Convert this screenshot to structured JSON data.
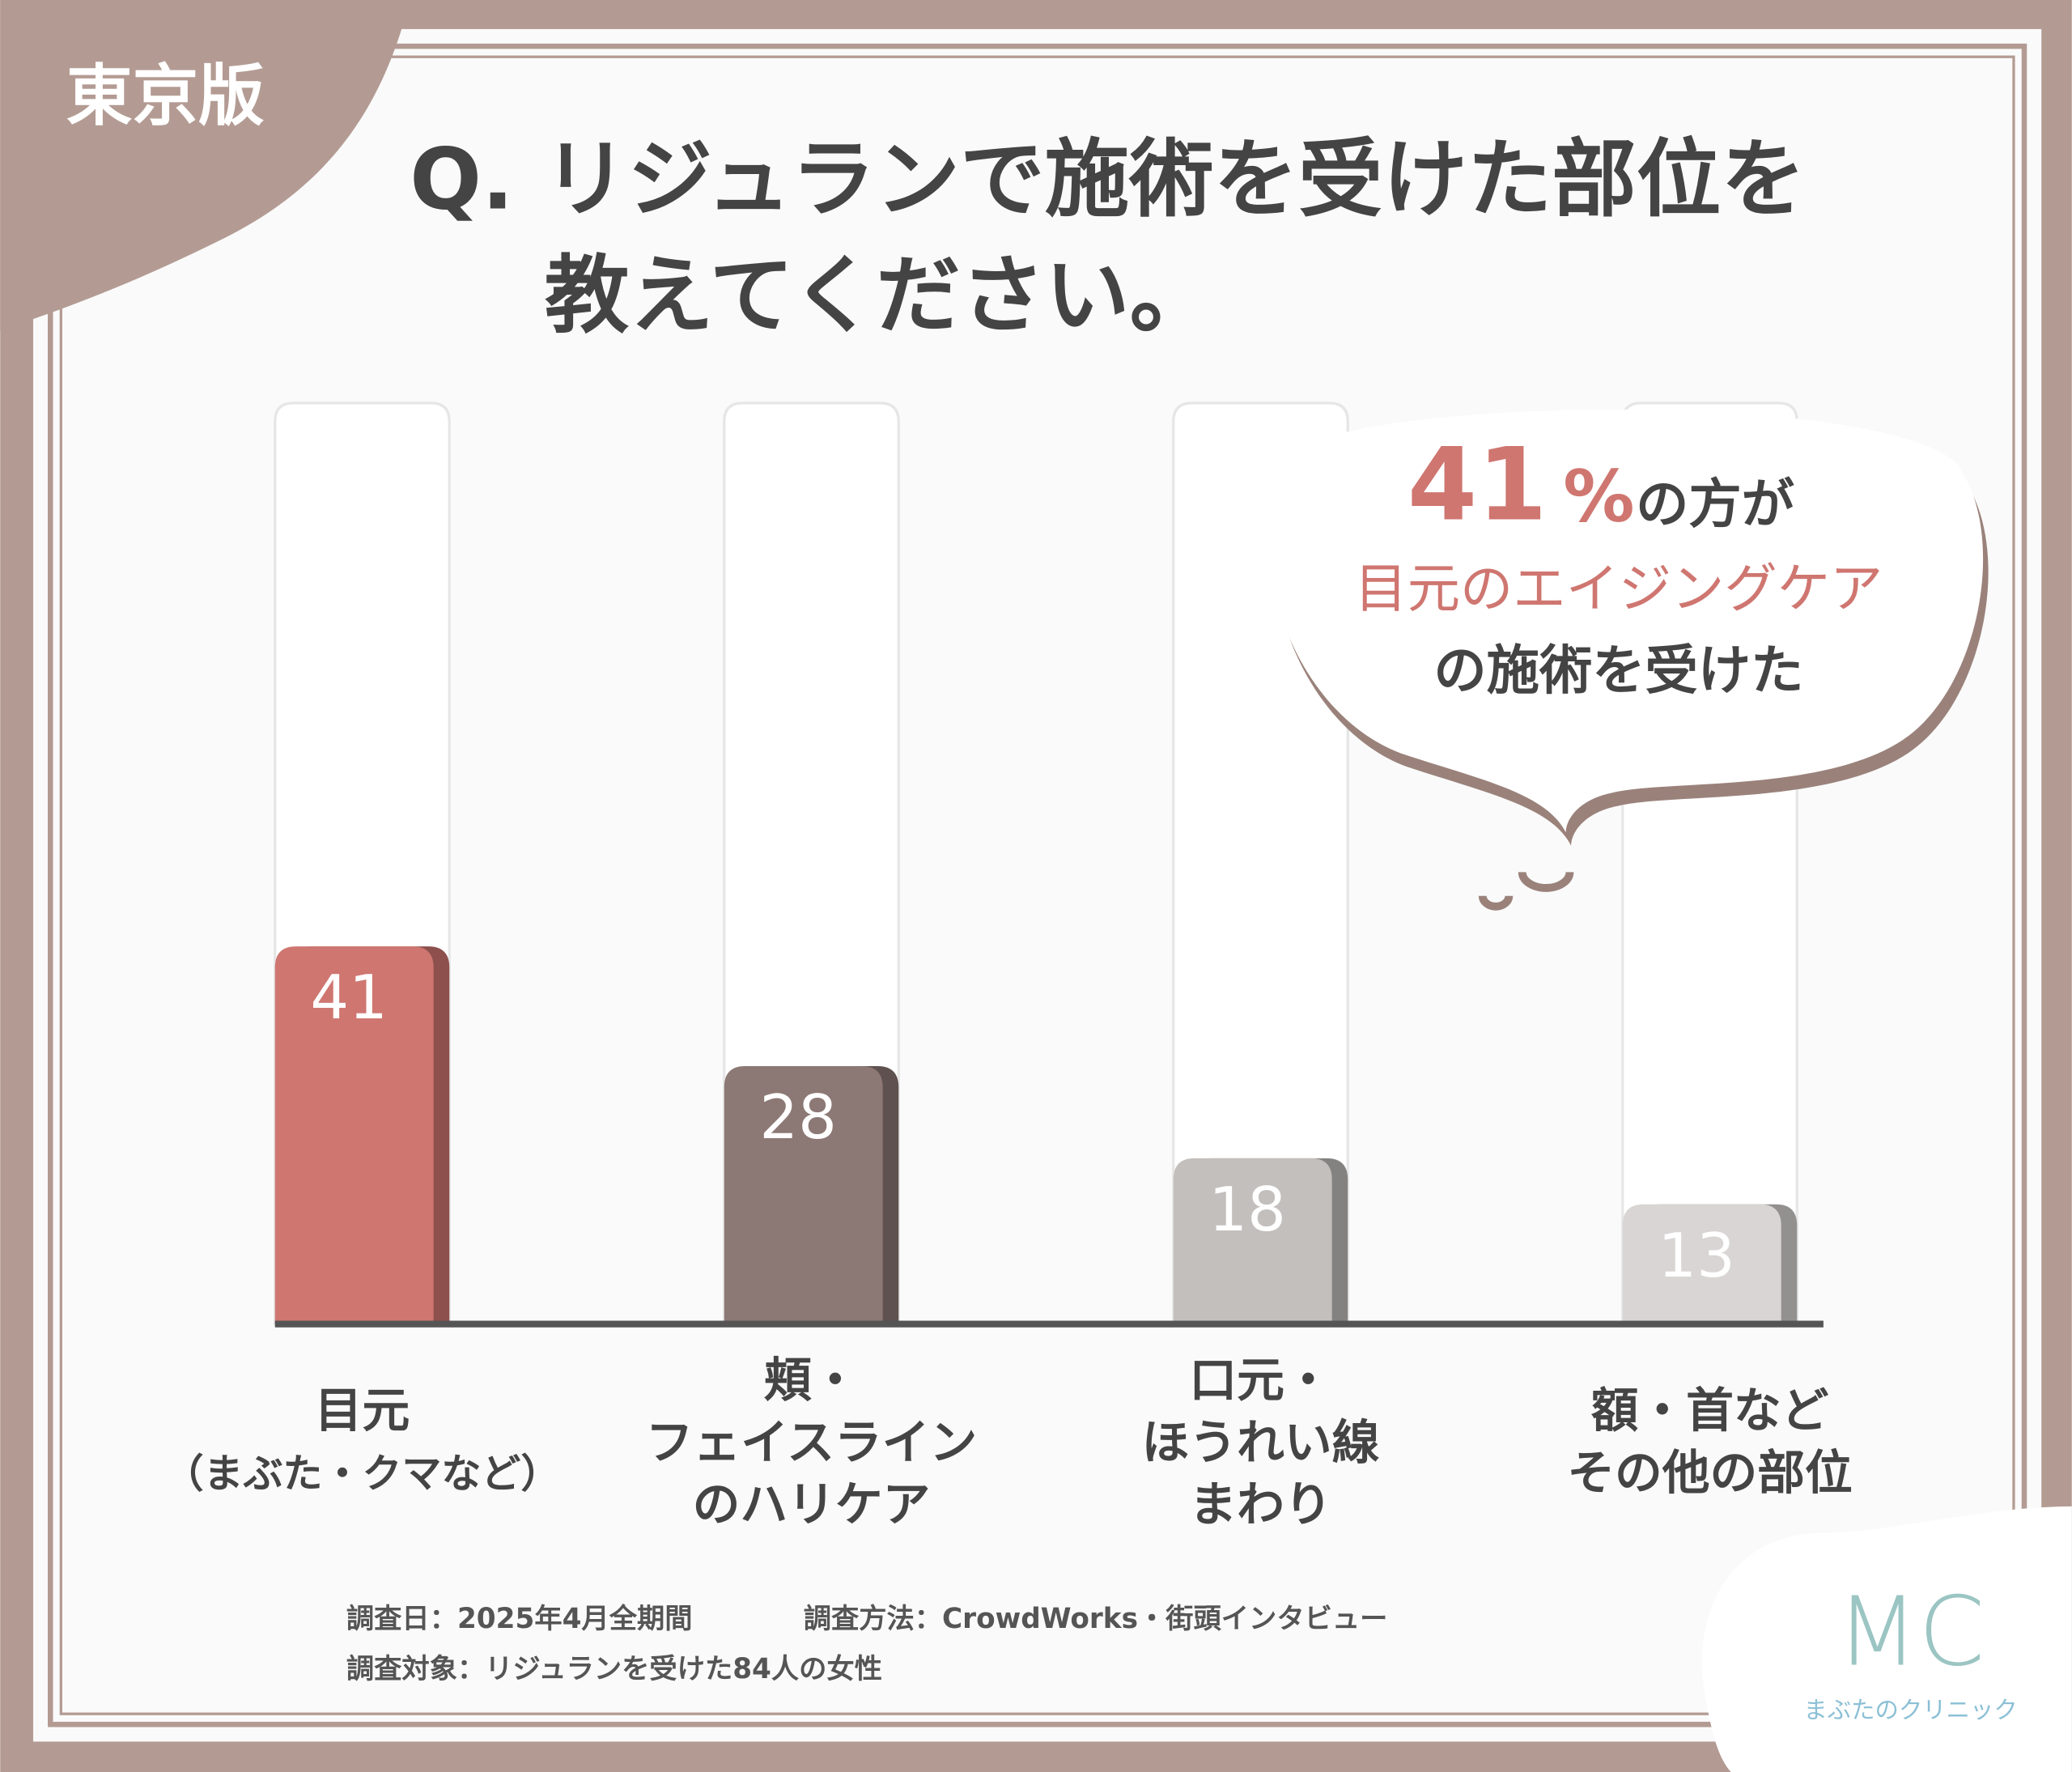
{
  "badge": "東京版",
  "chart_data": {
    "type": "bar",
    "title": [
      "Q. リジュランで施術を受けた部位を",
      "教えてください。"
    ],
    "categories": [
      [
        "目元",
        "（まぶた・クマなど）"
      ],
      [
        "頬・",
        "フェイスライン",
        "のハリケア"
      ],
      [
        "口元・",
        "ほうれい線",
        "まわり"
      ],
      [
        "額・首など",
        "その他の部位"
      ]
    ],
    "values": [
      41,
      28,
      18,
      13
    ],
    "colors": [
      "#cf7670",
      "#8c7874",
      "#c3bfbd",
      "#d8d5d4"
    ],
    "ylim": [
      0,
      100
    ]
  },
  "callout": {
    "number": "41",
    "unit": "%",
    "tail": "の方が",
    "highlight": "目元のエイジングケア",
    "last": "の施術を受けた"
  },
  "notes": [
    "調査日：2025年4月全期間",
    "調査方法：CrowdWorks・街頭インタビュー",
    "調査対象：リジュランを受けた84人の女性"
  ],
  "logo": {
    "mark": "MC",
    "name": "まぶたのクリニック"
  }
}
